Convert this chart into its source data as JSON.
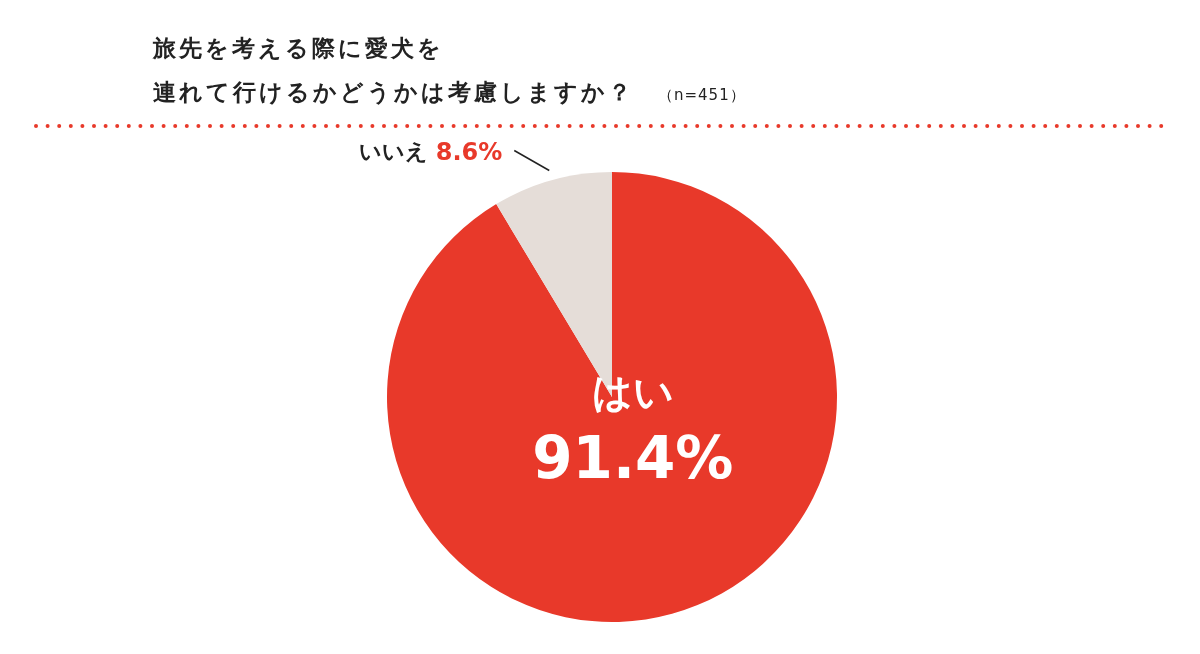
{
  "chart_data": {
    "type": "pie",
    "title": "旅先を考える際に愛犬を連れて行けるかどうかは考慮しますか？",
    "subtitle": "（n=451）",
    "categories": [
      "はい",
      "いいえ"
    ],
    "values": [
      91.4,
      8.6
    ],
    "colors": [
      "#e8392a",
      "#e5ddd8"
    ],
    "value_labels": [
      "91.4%",
      "8.6%"
    ]
  }
}
